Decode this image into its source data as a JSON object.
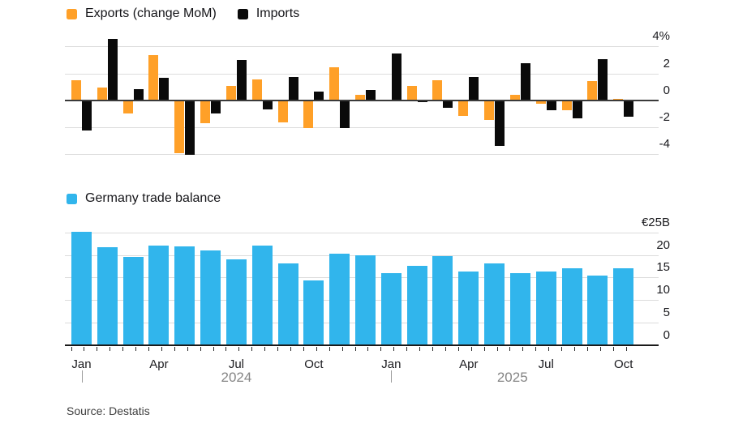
{
  "colors": {
    "exports": "#FFA028",
    "imports": "#0A0A0A",
    "balance": "#31B5EC",
    "grid": "#DCDCDC",
    "zero_line": "#3A3A3A",
    "baseline": "#1A1A1A",
    "axis_text": "#1B1B1F",
    "year_text": "#858585",
    "tick_mark": "#2B2B2B",
    "year_separator": "#9B9B9B",
    "source_text": "#3E3E3E"
  },
  "legend_top": {
    "exports": "Exports (change MoM)",
    "imports": "Imports"
  },
  "legend_bottom": {
    "balance": "Germany trade balance"
  },
  "source": "Source: Destatis",
  "x_axis": {
    "month_labels": [
      "Jan",
      "Apr",
      "Jul",
      "Oct",
      "Jan",
      "Apr",
      "Jul",
      "Oct"
    ],
    "month_label_indices": [
      0,
      3,
      6,
      9,
      12,
      15,
      18,
      21
    ],
    "year_labels": [
      "2024",
      "2025"
    ],
    "year_start_indices": [
      0,
      12
    ]
  },
  "chart_data": [
    {
      "type": "bar",
      "legend": [
        "Exports (change MoM)",
        "Imports"
      ],
      "legend_position": "top-left",
      "unit": "%",
      "axis_side": "right",
      "grid": true,
      "ylim": [
        -5,
        5
      ],
      "y_ticks": [
        {
          "label": "4%",
          "value": 4
        },
        {
          "label": "2",
          "value": 2
        },
        {
          "label": "0",
          "value": 0
        },
        {
          "label": "-2",
          "value": -2
        },
        {
          "label": "-4",
          "value": -4
        }
      ],
      "categories": [
        "Jan 2024",
        "Feb 2024",
        "Mar 2024",
        "Apr 2024",
        "May 2024",
        "Jun 2024",
        "Jul 2024",
        "Aug 2024",
        "Sep 2024",
        "Oct 2024",
        "Nov 2024",
        "Dec 2024",
        "Jan 2025",
        "Feb 2025",
        "Mar 2025",
        "Apr 2025",
        "May 2025",
        "Jun 2025",
        "Jul 2025",
        "Aug 2025",
        "Sep 2025",
        "Oct 2025"
      ],
      "series": [
        {
          "name": "Exports (change MoM)",
          "color": "#FFA028",
          "values": [
            1.5,
            0.95,
            -0.95,
            3.4,
            -3.9,
            -1.65,
            1.1,
            1.6,
            -1.6,
            -2.0,
            2.5,
            0.45,
            0,
            1.1,
            1.5,
            -1.15,
            -1.45,
            0.45,
            -0.2,
            -0.7,
            1.45,
            0.15
          ]
        },
        {
          "name": "Imports",
          "color": "#0A0A0A",
          "values": [
            -2.2,
            4.6,
            0.85,
            1.7,
            -4.0,
            -0.95,
            3.0,
            -0.65,
            1.75,
            0.65,
            -2.0,
            0.8,
            3.5,
            -0.1,
            -0.5,
            1.75,
            -3.35,
            2.8,
            -0.7,
            -1.3,
            3.1,
            -1.2
          ]
        }
      ]
    },
    {
      "type": "bar",
      "legend": [
        "Germany trade balance"
      ],
      "legend_position": "top-left",
      "unit": "€B",
      "axis_side": "right",
      "grid": true,
      "ylim": [
        0,
        26
      ],
      "y_ticks": [
        {
          "label": "€25B",
          "value": 25
        },
        {
          "label": "20",
          "value": 20
        },
        {
          "label": "15",
          "value": 15
        },
        {
          "label": "10",
          "value": 10
        },
        {
          "label": "5",
          "value": 5
        },
        {
          "label": "0",
          "value": 0
        }
      ],
      "categories": [
        "Jan 2024",
        "Feb 2024",
        "Mar 2024",
        "Apr 2024",
        "May 2024",
        "Jun 2024",
        "Jul 2024",
        "Aug 2024",
        "Sep 2024",
        "Oct 2024",
        "Nov 2024",
        "Dec 2024",
        "Jan 2025",
        "Feb 2025",
        "Mar 2025",
        "Apr 2025",
        "May 2025",
        "Jun 2025",
        "Jul 2025",
        "Aug 2025",
        "Sep 2025",
        "Oct 2025"
      ],
      "series": [
        {
          "name": "Germany trade balance",
          "color": "#31B5EC",
          "values": [
            25.2,
            21.9,
            19.7,
            22.2,
            22.0,
            21.1,
            19.2,
            22.1,
            18.2,
            14.5,
            20.3,
            20.0,
            16.1,
            17.7,
            19.9,
            16.5,
            18.3,
            16.0,
            16.5,
            17.1,
            15.5,
            17.1
          ]
        }
      ]
    }
  ]
}
